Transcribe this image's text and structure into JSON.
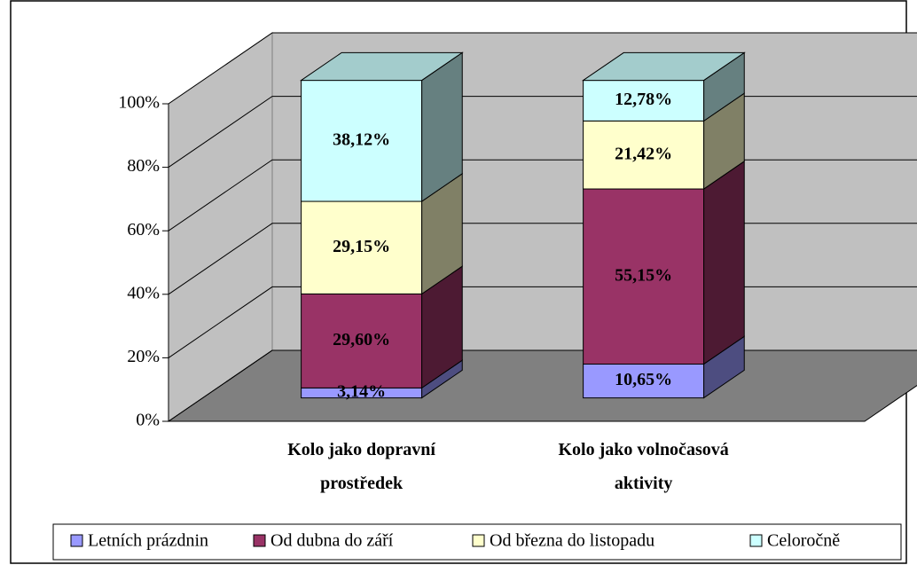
{
  "chart_data": {
    "type": "bar3d_stacked",
    "categories": [
      "Kolo jako dopravní prostředek",
      "Kolo jako volnočasová aktivity"
    ],
    "series": [
      {
        "name": "Letních prázdnin",
        "color": "#9999ff",
        "values": [
          3.14,
          10.65
        ],
        "value_labels": [
          "3,14%",
          "10,65%"
        ]
      },
      {
        "name": "Od dubna do září",
        "color": "#993366",
        "values": [
          29.6,
          55.15
        ],
        "value_labels": [
          "29,60%",
          "55,15%"
        ]
      },
      {
        "name": "Od března do listopadu",
        "color": "#ffffcc",
        "values": [
          29.15,
          21.42
        ],
        "value_labels": [
          "29,15%",
          "21,42%"
        ]
      },
      {
        "name": "Celoročně",
        "color": "#ccffff",
        "values": [
          38.12,
          12.78
        ],
        "value_labels": [
          "38,12%",
          "12,78%"
        ]
      }
    ],
    "ylim": [
      0,
      100
    ],
    "yticks": [
      {
        "value": 0,
        "label": "0%"
      },
      {
        "value": 20,
        "label": "20%"
      },
      {
        "value": 40,
        "label": "40%"
      },
      {
        "value": 60,
        "label": "60%"
      },
      {
        "value": 80,
        "label": "80%"
      },
      {
        "value": 100,
        "label": "100%"
      }
    ],
    "grid": true,
    "legend": "bottom"
  }
}
